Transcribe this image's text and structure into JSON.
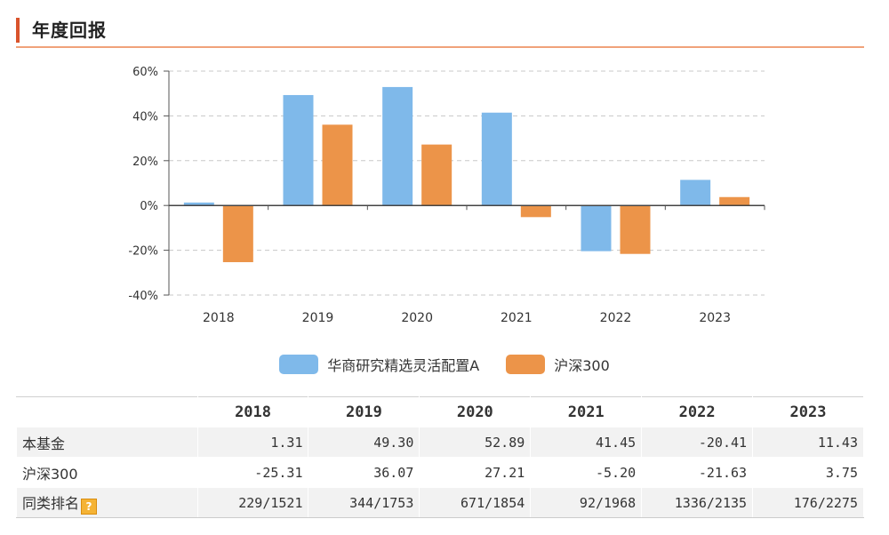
{
  "section": {
    "title": "年度回报"
  },
  "chart_data": {
    "type": "bar",
    "categories": [
      "2018",
      "2019",
      "2020",
      "2021",
      "2022",
      "2023"
    ],
    "series": [
      {
        "name": "华商研究精选灵活配置A",
        "values": [
          1.31,
          49.3,
          52.89,
          41.45,
          -20.41,
          11.43
        ],
        "color": "#7fb9ea"
      },
      {
        "name": "沪深300",
        "values": [
          -25.31,
          36.07,
          27.21,
          -5.2,
          -21.63,
          3.75
        ],
        "color": "#ec9449"
      }
    ],
    "ylim": [
      -40,
      60
    ],
    "yticks": [
      60,
      40,
      20,
      0,
      -20,
      -40
    ],
    "ytick_labels": [
      "60%",
      "40%",
      "20%",
      "0%",
      "-20%",
      "-40%"
    ],
    "grid": true,
    "legend_position": "bottom"
  },
  "table": {
    "headers": [
      "2018",
      "2019",
      "2020",
      "2021",
      "2022",
      "2023"
    ],
    "rows": [
      {
        "label": "本基金",
        "values": [
          "1.31",
          "49.30",
          "52.89",
          "41.45",
          "-20.41",
          "11.43"
        ]
      },
      {
        "label": "沪深300",
        "values": [
          "-25.31",
          "36.07",
          "27.21",
          "-5.20",
          "-21.63",
          "3.75"
        ]
      },
      {
        "label": "同类排名",
        "help_icon": "?",
        "values": [
          "229/1521",
          "344/1753",
          "671/1854",
          "92/1968",
          "1336/2135",
          "176/2275"
        ]
      }
    ]
  }
}
